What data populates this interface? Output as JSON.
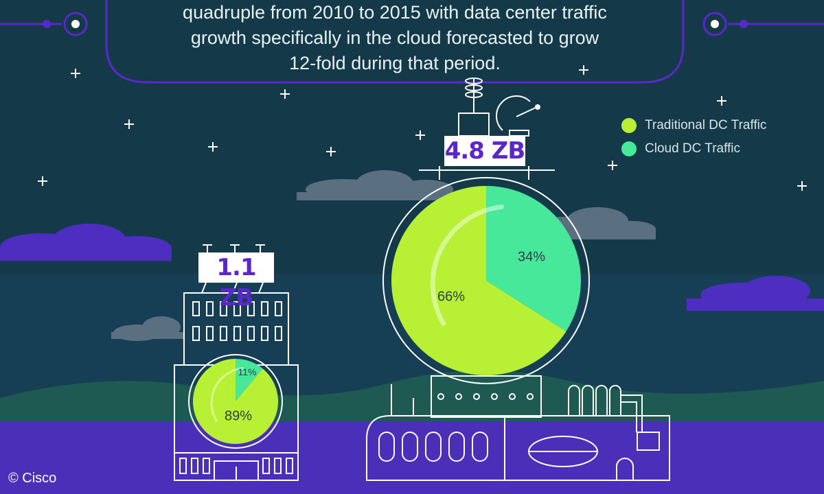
{
  "headline": {
    "lines": [
      "quadruple from 2010 to 2015 with data center traffic",
      "growth specifically in the cloud forecasted to grow",
      "12-fold during that period."
    ]
  },
  "credit": "© Cisco",
  "colors": {
    "background": "#143a4a",
    "traditional": "#b7f035",
    "cloud": "#47e89a",
    "outline": "#ffffff",
    "accent_purple": "#5a28c8"
  },
  "chart_data": [
    {
      "type": "pie",
      "total_label": "1.1 ZB",
      "year_label": "",
      "series": [
        {
          "name": "Traditional DC Traffic",
          "value": 89,
          "label": "89%"
        },
        {
          "name": "Cloud DC Traffic",
          "value": 11,
          "label": "11%"
        }
      ]
    },
    {
      "type": "pie",
      "total_label": "4.8 ZB",
      "year_label": "",
      "series": [
        {
          "name": "Traditional DC Traffic",
          "value": 66,
          "label": "66%"
        },
        {
          "name": "Cloud DC Traffic",
          "value": 34,
          "label": "34%"
        }
      ]
    }
  ],
  "legend": [
    {
      "label": "Traditional DC Traffic",
      "color": "#b7f035"
    },
    {
      "label": "Cloud DC Traffic",
      "color": "#47e89a"
    }
  ]
}
